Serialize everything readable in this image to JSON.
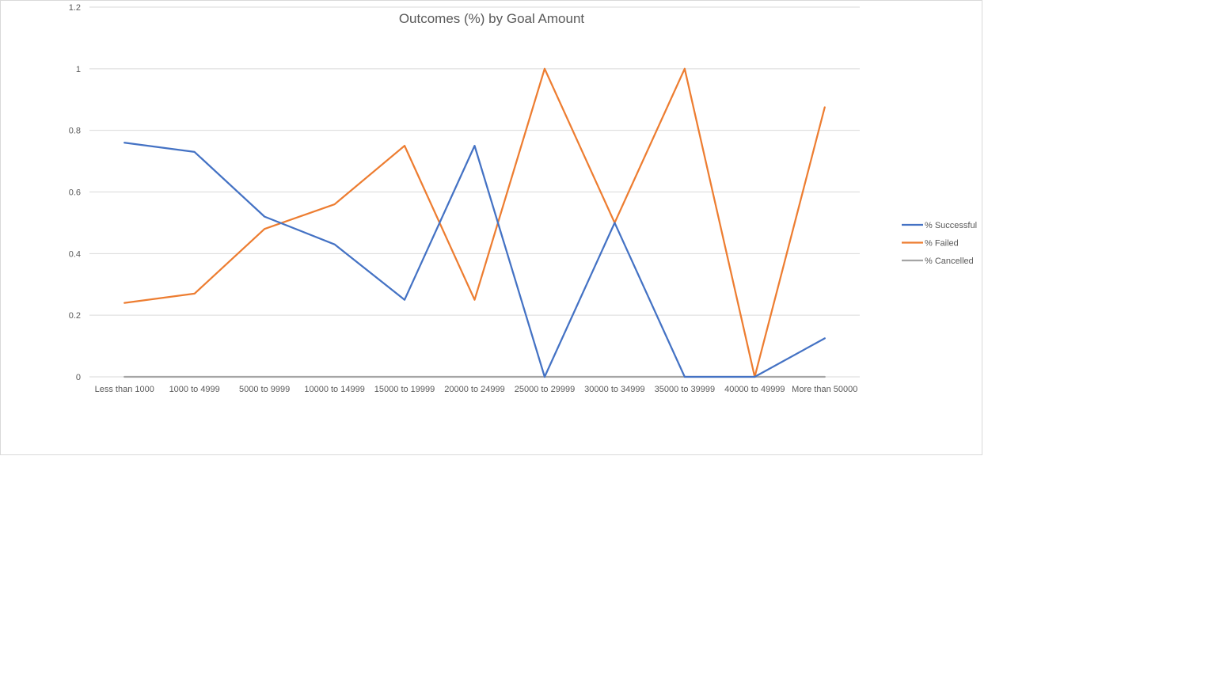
{
  "chart_data": {
    "type": "line",
    "title": "Outcomes (%) by Goal Amount",
    "xlabel": "",
    "ylabel": "",
    "ylim": [
      0,
      1.2
    ],
    "yticks": [
      "0",
      "0.2",
      "0.4",
      "0.6",
      "0.8",
      "1",
      "1.2"
    ],
    "ytick_values": [
      0,
      0.2,
      0.4,
      0.6,
      0.8,
      1.0,
      1.2
    ],
    "grid": true,
    "legend_position": "right",
    "categories": [
      "Less than 1000",
      "1000 to 4999",
      "5000 to 9999",
      "10000 to 14999",
      "15000 to 19999",
      "20000 to 24999",
      "25000 to 29999",
      "30000 to 34999",
      "35000 to 39999",
      "40000 to 49999",
      "More than 50000"
    ],
    "series": [
      {
        "name": "% Successful",
        "color": "#4472c4",
        "values": [
          0.76,
          0.73,
          0.52,
          0.43,
          0.25,
          0.75,
          0,
          0.5,
          0,
          0,
          0.125
        ]
      },
      {
        "name": "% Failed",
        "color": "#ed7d31",
        "values": [
          0.24,
          0.27,
          0.48,
          0.56,
          0.75,
          0.25,
          1,
          0.5,
          1,
          0,
          0.875
        ]
      },
      {
        "name": "% Cancelled",
        "color": "#a5a5a5",
        "values": [
          0,
          0,
          0,
          0,
          0,
          0,
          0,
          0,
          0,
          0,
          0
        ]
      }
    ]
  }
}
